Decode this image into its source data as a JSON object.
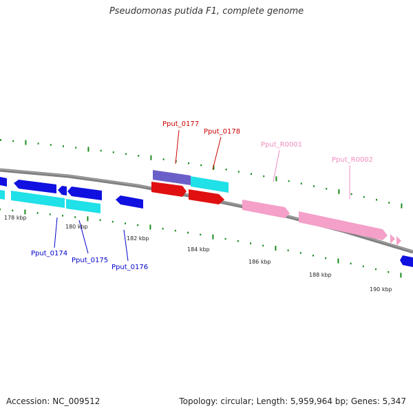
{
  "title": "Pseudomonas putida F1, complete genome",
  "footer": {
    "accession": "Accession: NC_009512",
    "summary": "Topology: circular; Length: 5,959,964 bp; Genes: 5,347"
  },
  "colors": {
    "backbone": "#808080",
    "tick": "#1a8a1a",
    "blue_gene": "#1010e0",
    "cyan_gene": "#20e0e8",
    "purple_gene": "#6a5fc8",
    "red_gene": "#e01010",
    "pink_gene": "#f4a0c8",
    "label_red": "#cc0000",
    "label_blue": "#0000cc",
    "label_pink": "#f08cc0"
  },
  "scale_labels": [
    "178 kbp",
    "180 kbp",
    "182 kbp",
    "184 kbp",
    "186 kbp",
    "188 kbp",
    "190 kbp"
  ],
  "gene_labels": {
    "top": [
      "Pput_0177",
      "Pput_0178",
      "Pput_R0001",
      "Pput_R0002"
    ],
    "bottom": [
      "Pput_0174",
      "Pput_0175",
      "Pput_0176"
    ]
  }
}
